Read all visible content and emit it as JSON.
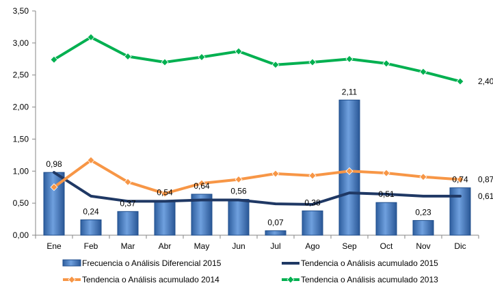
{
  "chart_data": {
    "type": "bar",
    "categories": [
      "Ene",
      "Feb",
      "Mar",
      "Abr",
      "May",
      "Jun",
      "Jul",
      "Ago",
      "Sep",
      "Oct",
      "Nov",
      "Dic"
    ],
    "ylim": [
      0,
      3.5
    ],
    "yticks": [
      "0,00",
      "0,50",
      "1,00",
      "1,50",
      "2,00",
      "2,50",
      "3,00",
      "3,50"
    ],
    "grid": false,
    "legend_position": "bottom",
    "series": [
      {
        "name": "Frecuencia o Análisis Diferencial 2015",
        "type": "bar",
        "color": "#4f81bd",
        "values": [
          0.98,
          0.24,
          0.37,
          0.54,
          0.64,
          0.56,
          0.07,
          0.38,
          2.11,
          0.51,
          0.23,
          0.74
        ],
        "labels": [
          "0,98",
          "0,24",
          "0,37",
          "0,54",
          "0,64",
          "0,56",
          "0,07",
          "0,38",
          "2,11",
          "0,51",
          "0,23",
          "0,74"
        ]
      },
      {
        "name": "Tendencia o Análisis acumulado 2015",
        "type": "line",
        "color": "#1f3864",
        "values": [
          0.98,
          0.61,
          0.53,
          0.53,
          0.55,
          0.55,
          0.49,
          0.48,
          0.66,
          0.64,
          0.61,
          0.61
        ],
        "end_label": "0,61"
      },
      {
        "name": "Tendencia o Análisis acumulado 2014",
        "type": "line",
        "marker": "diamond",
        "color": "#f79646",
        "values": [
          0.75,
          1.17,
          0.83,
          0.65,
          0.81,
          0.87,
          0.96,
          0.93,
          1.0,
          0.97,
          0.91,
          0.87
        ],
        "end_label": "0,87"
      },
      {
        "name": "Tendencia o Análisis acumulado 2013",
        "type": "line",
        "marker": "diamond",
        "color": "#00b050",
        "values": [
          2.74,
          3.09,
          2.79,
          2.7,
          2.78,
          2.87,
          2.66,
          2.7,
          2.75,
          2.68,
          2.55,
          2.4
        ],
        "end_label": "2,40"
      }
    ]
  }
}
